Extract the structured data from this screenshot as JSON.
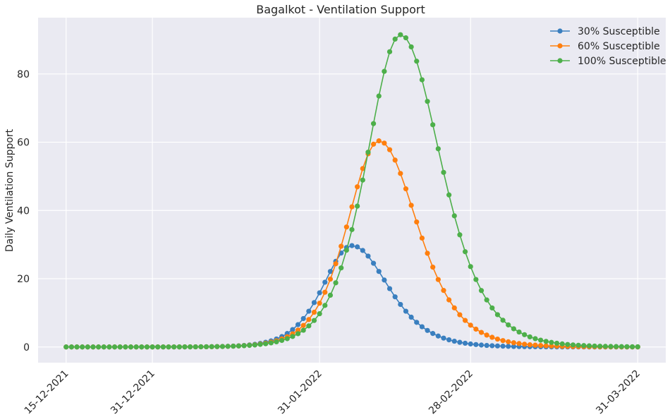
{
  "chart_data": {
    "type": "line",
    "title": "Bagalkot - Ventilation Support",
    "xlabel": "",
    "ylabel": "Daily Ventilation Support",
    "x_tick_labels": [
      "15-12-2021",
      "31-12-2021",
      "31-01-2022",
      "28-02-2022",
      "31-03-2022"
    ],
    "x_tick_dates": [
      "2021-12-15",
      "2021-12-31",
      "2022-01-31",
      "2022-02-28",
      "2022-03-31"
    ],
    "x_start": "2021-12-15",
    "x_end": "2022-03-31",
    "x_step_days": 1,
    "yticks": [
      0,
      20,
      40,
      60,
      80
    ],
    "ylim": [
      -4.6,
      96.5
    ],
    "grid": true,
    "legend_position": "top-right",
    "series": [
      {
        "name": "30% Susceptible",
        "color": "#3a7fbf",
        "peak_date": "2022-02-06",
        "peak": 29.7,
        "rise_width": 7.2,
        "fall_width": 9.0
      },
      {
        "name": "60% Susceptible",
        "color": "#ff7f0e",
        "peak_date": "2022-02-11",
        "peak": 60.4,
        "rise_width": 7.8,
        "fall_width": 9.5
      },
      {
        "name": "100% Susceptible",
        "color": "#4daf4a",
        "peak_date": "2022-02-15",
        "peak": 91.5,
        "rise_width": 8.4,
        "fall_width": 10.0
      }
    ]
  }
}
